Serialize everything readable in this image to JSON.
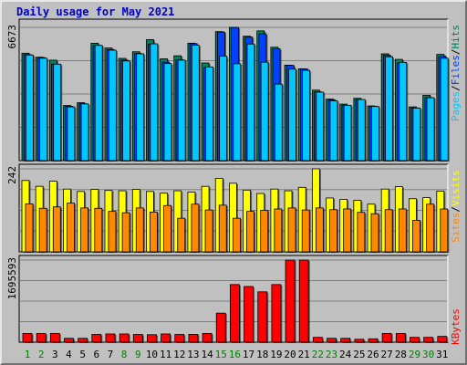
{
  "title": "Daily usage for May 2021",
  "colors": {
    "hits": "#00805c",
    "files": "#0040ff",
    "pages": "#00c8ff",
    "visits": "#ffff00",
    "sites": "#ff8800",
    "kbytes": "#ff0000",
    "weekday": "#000000",
    "weekend": "#008000"
  },
  "chart_data": [
    {
      "type": "bar",
      "x": [
        1,
        2,
        3,
        4,
        5,
        6,
        7,
        8,
        9,
        10,
        11,
        12,
        13,
        14,
        15,
        16,
        17,
        18,
        19,
        20,
        21,
        22,
        23,
        24,
        25,
        26,
        27,
        28,
        29,
        30,
        31
      ],
      "weekend_days": [
        1,
        2,
        8,
        9,
        15,
        16,
        22,
        23,
        29,
        30
      ],
      "y_max_label": "6673",
      "ylabel": [
        "Pages",
        "/",
        "Files",
        "/",
        "Hits"
      ],
      "series": [
        {
          "name": "Hits",
          "values": [
            5380,
            5180,
            5030,
            2760,
            2900,
            5880,
            5640,
            5120,
            5450,
            6060,
            5100,
            5250,
            5880,
            4890,
            6460,
            6673,
            6230,
            6500,
            5680,
            4780,
            4600,
            3530,
            3080,
            2830,
            3120,
            2740,
            5350,
            5070,
            2690,
            3270,
            5320
          ]
        },
        {
          "name": "Files",
          "values": [
            5310,
            5160,
            4830,
            2720,
            2850,
            5770,
            5560,
            5030,
            5360,
            5840,
            4930,
            5050,
            5860,
            4660,
            6440,
            6670,
            6190,
            6350,
            5600,
            4770,
            4590,
            3440,
            3040,
            2770,
            3060,
            2720,
            5270,
            4890,
            2640,
            3150,
            5220
          ]
        },
        {
          "name": "Pages",
          "values": [
            5290,
            5130,
            4830,
            2690,
            2840,
            5770,
            5530,
            4990,
            5350,
            5850,
            4860,
            5030,
            5780,
            4690,
            5230,
            4850,
            5840,
            4930,
            3830,
            4580,
            4520,
            3430,
            3000,
            2770,
            3060,
            2710,
            5200,
            4920,
            2630,
            3150,
            5130
          ]
        }
      ]
    },
    {
      "type": "bar",
      "x": [
        1,
        2,
        3,
        4,
        5,
        6,
        7,
        8,
        9,
        10,
        11,
        12,
        13,
        14,
        15,
        16,
        17,
        18,
        19,
        20,
        21,
        22,
        23,
        24,
        25,
        26,
        27,
        28,
        29,
        30,
        31
      ],
      "y_max_label": "242",
      "ylabel": [
        "Sites",
        "/",
        "Visits"
      ],
      "series": [
        {
          "name": "Visits",
          "values": [
            208,
            191,
            206,
            183,
            176,
            182,
            179,
            178,
            182,
            176,
            171,
            178,
            174,
            191,
            214,
            200,
            180,
            170,
            183,
            178,
            188,
            242,
            157,
            153,
            150,
            139,
            183,
            190,
            155,
            158,
            177
          ]
        },
        {
          "name": "Sites",
          "values": [
            140,
            127,
            131,
            142,
            128,
            127,
            118,
            114,
            128,
            116,
            135,
            98,
            139,
            122,
            136,
            98,
            118,
            121,
            125,
            128,
            122,
            128,
            123,
            125,
            115,
            111,
            123,
            125,
            92,
            139,
            125
          ]
        }
      ]
    },
    {
      "type": "bar",
      "x": [
        1,
        2,
        3,
        4,
        5,
        6,
        7,
        8,
        9,
        10,
        11,
        12,
        13,
        14,
        15,
        16,
        17,
        18,
        19,
        20,
        21,
        22,
        23,
        24,
        25,
        26,
        27,
        28,
        29,
        30,
        31
      ],
      "y_max_label": "1695593",
      "ylabel": [
        "KBytes"
      ],
      "series": [
        {
          "name": "KBytes",
          "values": [
            180000,
            178000,
            180000,
            80000,
            80000,
            160000,
            170000,
            170000,
            160000,
            155000,
            170000,
            160000,
            162000,
            180000,
            600000,
            1190000,
            1150000,
            1040000,
            1190000,
            1695593,
            1695593,
            100000,
            80000,
            80000,
            60000,
            70000,
            180000,
            180000,
            100000,
            100000,
            120000
          ]
        }
      ]
    }
  ]
}
